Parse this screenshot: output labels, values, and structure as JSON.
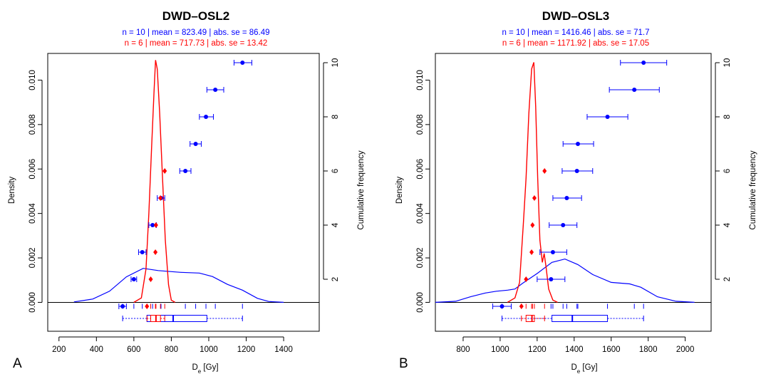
{
  "colors": {
    "blue": "#0000ff",
    "red": "#ff0000",
    "axis": "#000000"
  },
  "chart_data": [
    {
      "panel_label": "A",
      "type": "abanico",
      "title": "DWD–OSL2",
      "stats": [
        {
          "text": "n = 10 | mean = 823.49 | abs. se = 86.49",
          "series": "blue"
        },
        {
          "text": "n = 6 | mean = 717.73 | abs. se = 13.42",
          "series": "red"
        }
      ],
      "xlabel": "De [Gy]",
      "ylabel_left": "Density",
      "ylabel_right": "Cumulative frequency",
      "xlim": [
        140,
        1590
      ],
      "ylim": [
        -0.0013,
        0.0112
      ],
      "xticks": [
        200,
        400,
        600,
        800,
        1000,
        1200,
        1400
      ],
      "yticks": [
        0.0,
        0.002,
        0.004,
        0.006,
        0.008,
        0.01
      ],
      "ytick_labels": [
        "0.000",
        "0.002",
        "0.004",
        "0.006",
        "0.008",
        "0.010"
      ],
      "cum_ticks": [
        2,
        4,
        6,
        8,
        10
      ],
      "cum_max": 10,
      "blue_points": [
        {
          "x": 540,
          "lo": 520,
          "hi": 560
        },
        {
          "x": 600,
          "lo": 585,
          "hi": 615
        },
        {
          "x": 645,
          "lo": 625,
          "hi": 665
        },
        {
          "x": 700,
          "lo": 680,
          "hi": 720
        },
        {
          "x": 745,
          "lo": 725,
          "hi": 765
        },
        {
          "x": 875,
          "lo": 845,
          "hi": 905
        },
        {
          "x": 930,
          "lo": 900,
          "hi": 960
        },
        {
          "x": 985,
          "lo": 950,
          "hi": 1025
        },
        {
          "x": 1035,
          "lo": 990,
          "hi": 1080
        },
        {
          "x": 1180,
          "lo": 1135,
          "hi": 1230
        }
      ],
      "red_points": [
        {
          "x": 670,
          "lo": 665,
          "hi": 675
        },
        {
          "x": 690,
          "lo": 685,
          "hi": 695
        },
        {
          "x": 715,
          "lo": 710,
          "hi": 720
        },
        {
          "x": 718,
          "lo": 713,
          "hi": 723
        },
        {
          "x": 742,
          "lo": 737,
          "hi": 747
        },
        {
          "x": 765,
          "lo": 760,
          "hi": 770
        }
      ],
      "blue_density": [
        [
          280,
          2e-05
        ],
        [
          380,
          0.00015
        ],
        [
          470,
          0.0005
        ],
        [
          560,
          0.00115
        ],
        [
          650,
          0.00153
        ],
        [
          730,
          0.00143
        ],
        [
          850,
          0.00135
        ],
        [
          950,
          0.00132
        ],
        [
          1020,
          0.00116
        ],
        [
          1100,
          0.00081
        ],
        [
          1180,
          0.00055
        ],
        [
          1260,
          0.00018
        ],
        [
          1320,
          4e-05
        ],
        [
          1400,
          0.0
        ]
      ],
      "red_density": [
        [
          600,
          0.0
        ],
        [
          640,
          0.0002
        ],
        [
          665,
          0.0015
        ],
        [
          680,
          0.004
        ],
        [
          695,
          0.007
        ],
        [
          708,
          0.0095
        ],
        [
          716,
          0.0109
        ],
        [
          725,
          0.0105
        ],
        [
          738,
          0.0085
        ],
        [
          752,
          0.0058
        ],
        [
          768,
          0.0028
        ],
        [
          785,
          0.0008
        ],
        [
          800,
          0.0001
        ],
        [
          820,
          0.0
        ]
      ],
      "blue_box": {
        "min": 540,
        "q1": 670,
        "median": 810,
        "q3": 990,
        "max": 1180
      },
      "red_box": {
        "min": 670,
        "q1": 690,
        "median": 718,
        "q3": 742,
        "max": 765
      }
    },
    {
      "panel_label": "B",
      "type": "abanico",
      "title": "DWD–OSL3",
      "stats": [
        {
          "text": "n = 10 | mean = 1416.46 | abs. se = 71.7",
          "series": "blue"
        },
        {
          "text": "n = 6 | mean = 1171.92 | abs. se = 17.05",
          "series": "red"
        }
      ],
      "xlabel": "De [Gy]",
      "ylabel_left": "Density",
      "ylabel_right": "Cumulative frequency",
      "xlim": [
        650,
        2140
      ],
      "ylim": [
        -0.0013,
        0.0112
      ],
      "xticks": [
        800,
        1000,
        1200,
        1400,
        1600,
        1800,
        2000
      ],
      "yticks": [
        0.0,
        0.002,
        0.004,
        0.006,
        0.008,
        0.01
      ],
      "ytick_labels": [
        "0.000",
        "0.002",
        "0.004",
        "0.006",
        "0.008",
        "0.010"
      ],
      "cum_ticks": [
        2,
        4,
        6,
        8,
        10
      ],
      "cum_max": 10,
      "blue_points": [
        {
          "x": 1010,
          "lo": 960,
          "hi": 1060
        },
        {
          "x": 1275,
          "lo": 1200,
          "hi": 1350
        },
        {
          "x": 1285,
          "lo": 1215,
          "hi": 1360
        },
        {
          "x": 1340,
          "lo": 1265,
          "hi": 1415
        },
        {
          "x": 1360,
          "lo": 1285,
          "hi": 1440
        },
        {
          "x": 1415,
          "lo": 1335,
          "hi": 1500
        },
        {
          "x": 1420,
          "lo": 1340,
          "hi": 1505
        },
        {
          "x": 1580,
          "lo": 1470,
          "hi": 1690
        },
        {
          "x": 1725,
          "lo": 1590,
          "hi": 1860
        },
        {
          "x": 1775,
          "lo": 1650,
          "hi": 1900
        }
      ],
      "red_points": [
        {
          "x": 1115,
          "lo": 1110,
          "hi": 1120
        },
        {
          "x": 1140,
          "lo": 1135,
          "hi": 1145
        },
        {
          "x": 1170,
          "lo": 1165,
          "hi": 1175
        },
        {
          "x": 1175,
          "lo": 1170,
          "hi": 1180
        },
        {
          "x": 1185,
          "lo": 1180,
          "hi": 1190
        },
        {
          "x": 1240,
          "lo": 1235,
          "hi": 1245
        }
      ],
      "blue_density": [
        [
          650,
          0.0
        ],
        [
          760,
          5e-05
        ],
        [
          840,
          0.00025
        ],
        [
          920,
          0.00042
        ],
        [
          980,
          0.0005
        ],
        [
          1040,
          0.00055
        ],
        [
          1080,
          0.0006
        ],
        [
          1120,
          0.00085
        ],
        [
          1200,
          0.0013
        ],
        [
          1280,
          0.0018
        ],
        [
          1350,
          0.00195
        ],
        [
          1420,
          0.0017
        ],
        [
          1500,
          0.00125
        ],
        [
          1600,
          0.0009
        ],
        [
          1700,
          0.00083
        ],
        [
          1760,
          0.00068
        ],
        [
          1850,
          0.00025
        ],
        [
          1950,
          5e-05
        ],
        [
          2050,
          0.0
        ]
      ],
      "red_density": [
        [
          1040,
          0.0
        ],
        [
          1080,
          0.0002
        ],
        [
          1105,
          0.0009
        ],
        [
          1125,
          0.0035
        ],
        [
          1140,
          0.0056
        ],
        [
          1155,
          0.0085
        ],
        [
          1170,
          0.0105
        ],
        [
          1182,
          0.0108
        ],
        [
          1192,
          0.0088
        ],
        [
          1203,
          0.0056
        ],
        [
          1215,
          0.0028
        ],
        [
          1228,
          0.0018
        ],
        [
          1238,
          0.0022
        ],
        [
          1248,
          0.0016
        ],
        [
          1262,
          0.0006
        ],
        [
          1285,
          0.0001
        ],
        [
          1310,
          0.0
        ]
      ],
      "blue_box": {
        "min": 1010,
        "q1": 1280,
        "median": 1390,
        "q3": 1580,
        "max": 1775
      },
      "red_box": {
        "min": 1115,
        "q1": 1140,
        "median": 1172,
        "q3": 1185,
        "max": 1240
      }
    }
  ]
}
